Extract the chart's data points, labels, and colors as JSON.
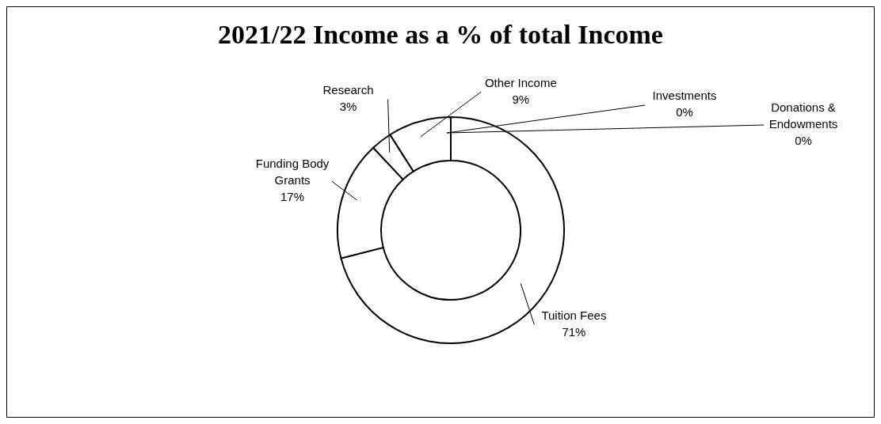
{
  "chart_data": {
    "type": "donut",
    "title": "2021/22 Income as a % of total Income",
    "categories": [
      "Tuition Fees",
      "Funding Body Grants",
      "Research",
      "Other Income",
      "Investments",
      "Donations & Endowments"
    ],
    "values": [
      71,
      17,
      3,
      9,
      0,
      0
    ],
    "value_labels": [
      "71%",
      "17%",
      "3%",
      "9%",
      "0%",
      "0%"
    ],
    "colors": [
      "#ffffff",
      "#ffffff",
      "#ffffff",
      "#ffffff",
      "#ffffff",
      "#ffffff"
    ]
  }
}
